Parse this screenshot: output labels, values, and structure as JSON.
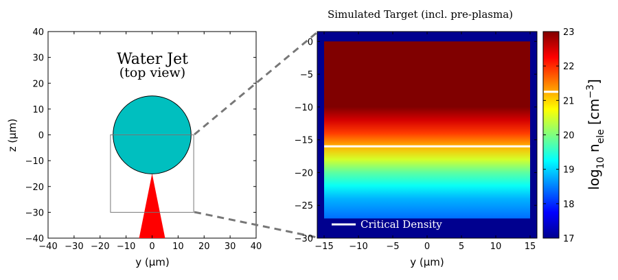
{
  "chart_data": [
    {
      "type": "diagram",
      "annotation_title": "Water Jet",
      "annotation_subtitle": "(top view)",
      "xlabel": "y (μm)",
      "ylabel": "z (μm)",
      "xlim": [
        -40,
        40
      ],
      "ylim": [
        -40,
        40
      ],
      "xticks": [
        -40,
        -30,
        -20,
        -10,
        0,
        10,
        20,
        30,
        40
      ],
      "yticks": [
        -40,
        -30,
        -20,
        -10,
        0,
        10,
        20,
        30,
        40
      ],
      "jet": {
        "center": [
          0,
          0
        ],
        "radius": 15,
        "color": "#00bfbf"
      },
      "laser_cone": {
        "apex": [
          0,
          -15
        ],
        "base": [
          [
            -5,
            -40
          ],
          [
            5,
            -40
          ]
        ],
        "color": "#ff0000"
      },
      "zoom_box": {
        "y": [
          -16,
          16
        ],
        "z": [
          -30,
          0
        ]
      }
    },
    {
      "type": "heatmap",
      "title": "Simulated Target (incl. pre-plasma)",
      "xlabel": "y (μm)",
      "ylabel": "",
      "xlim": [
        -16,
        16
      ],
      "ylim": [
        -30,
        1.5
      ],
      "xticks": [
        -15,
        -10,
        -5,
        0,
        5,
        10,
        15
      ],
      "yticks": [
        0,
        -5,
        -10,
        -15,
        -20,
        -25,
        -30
      ],
      "target_extent": {
        "y": [
          -15,
          15
        ],
        "z": [
          -27,
          0
        ]
      },
      "background_log_density": 17,
      "density_profile": [
        {
          "z": 0,
          "log10_n": 23
        },
        {
          "z": -10,
          "log10_n": 23
        },
        {
          "z": -12,
          "log10_n": 22.5
        },
        {
          "z": -14,
          "log10_n": 21.9
        },
        {
          "z": -16,
          "log10_n": 21.2
        },
        {
          "z": -18,
          "log10_n": 20.5
        },
        {
          "z": -20,
          "log10_n": 19.8
        },
        {
          "z": -22,
          "log10_n": 19.3
        },
        {
          "z": -24,
          "log10_n": 18.8
        },
        {
          "z": -27,
          "log10_n": 18.4
        }
      ],
      "critical_density_z": -16,
      "legend_label": "Critical Density",
      "colorbar": {
        "label_main": "log",
        "label_sub": "10",
        "label_var": " n",
        "label_var_sub": "ele",
        "label_unit": " [cm",
        "label_unit_sup": "−3",
        "label_close": "]",
        "min": 17,
        "max": 23,
        "ticks": [
          17,
          18,
          19,
          20,
          21,
          22,
          23
        ],
        "critical_marker": 21.25,
        "colormap": "jet"
      }
    }
  ]
}
